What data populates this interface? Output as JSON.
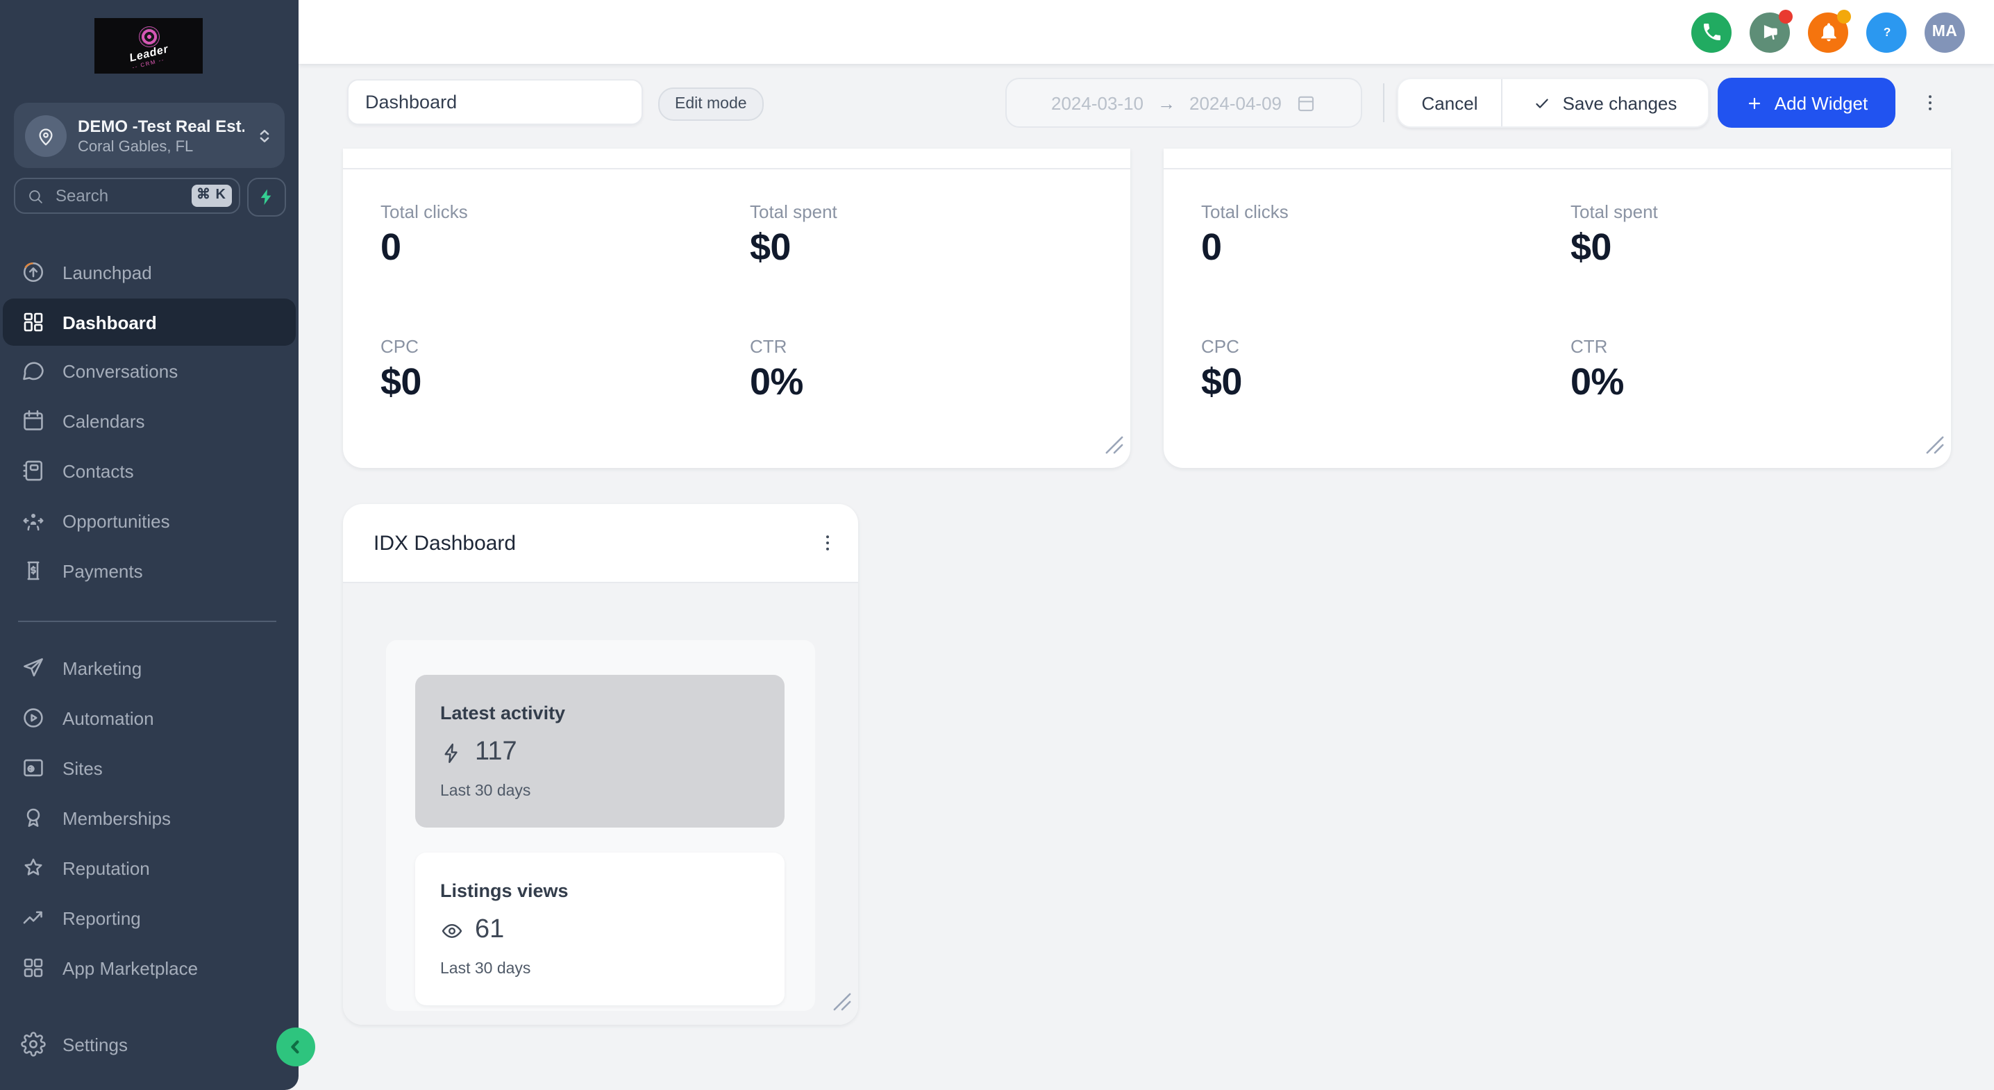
{
  "sidebar": {
    "logo_text": "Leader",
    "logo_subtext": "-- CRM --",
    "account": {
      "name": "DEMO -Test Real Est...",
      "location": "Coral Gables, FL"
    },
    "search_placeholder": "Search",
    "search_shortcut": "⌘ K",
    "nav_groups": [
      {
        "items": [
          {
            "id": "launchpad",
            "label": "Launchpad",
            "icon": "launchpad"
          },
          {
            "id": "dashboard",
            "label": "Dashboard",
            "icon": "dashboard-grid",
            "active": true
          },
          {
            "id": "conversations",
            "label": "Conversations",
            "icon": "chat-bubble"
          },
          {
            "id": "calendars",
            "label": "Calendars",
            "icon": "calendar"
          },
          {
            "id": "contacts",
            "label": "Contacts",
            "icon": "address-book"
          },
          {
            "id": "opportunities",
            "label": "Opportunities",
            "icon": "opportunities"
          },
          {
            "id": "payments",
            "label": "Payments",
            "icon": "invoice"
          }
        ]
      },
      {
        "items": [
          {
            "id": "marketing",
            "label": "Marketing",
            "icon": "paper-plane"
          },
          {
            "id": "automation",
            "label": "Automation",
            "icon": "play-circle"
          },
          {
            "id": "sites",
            "label": "Sites",
            "icon": "browser-globe"
          },
          {
            "id": "memberships",
            "label": "Memberships",
            "icon": "award-badge"
          },
          {
            "id": "reputation",
            "label": "Reputation",
            "icon": "star"
          },
          {
            "id": "reporting",
            "label": "Reporting",
            "icon": "trend-up"
          },
          {
            "id": "app-marketplace",
            "label": "App Marketplace",
            "icon": "grid-squares"
          }
        ]
      }
    ],
    "settings": {
      "id": "settings",
      "label": "Settings",
      "icon": "gear"
    }
  },
  "header": {
    "actions": [
      {
        "name": "phone-button",
        "icon": "phone",
        "bg": "#21ab61"
      },
      {
        "name": "announcements-button",
        "icon": "megaphone",
        "bg": "#5e8e77",
        "badge": "#e93a30"
      },
      {
        "name": "notifications-button",
        "icon": "bell",
        "bg": "#f5740e",
        "badge": "#f3a80b"
      },
      {
        "name": "help-button",
        "icon": "question",
        "bg": "#2b98f0"
      },
      {
        "name": "user-avatar",
        "initials": "MA",
        "bg": "#8294b8"
      }
    ]
  },
  "toolbar": {
    "dashboard_name": "Dashboard",
    "edit_mode_label": "Edit mode",
    "date_start": "2024-03-10",
    "date_end": "2024-04-09",
    "cancel_label": "Cancel",
    "save_label": "Save changes",
    "add_widget_label": "Add Widget"
  },
  "widgets": {
    "ad_reports": [
      {
        "stats": [
          {
            "label": "Total clicks",
            "value": "0"
          },
          {
            "label": "Total spent",
            "value": "$0"
          },
          {
            "label": "CPC",
            "value": "$0"
          },
          {
            "label": "CTR",
            "value": "0%"
          }
        ]
      },
      {
        "stats": [
          {
            "label": "Total clicks",
            "value": "0"
          },
          {
            "label": "Total spent",
            "value": "$0"
          },
          {
            "label": "CPC",
            "value": "$0"
          },
          {
            "label": "CTR",
            "value": "0%"
          }
        ]
      }
    ],
    "idx": {
      "title": "IDX Dashboard",
      "metrics": [
        {
          "label": "Latest activity",
          "icon": "bolt-outline",
          "value": "117",
          "period": "Last 30 days",
          "highlighted": true
        },
        {
          "label": "Listings views",
          "icon": "eye",
          "value": "61",
          "period": "Last 30 days",
          "highlighted": false
        }
      ]
    }
  },
  "colors": {
    "accent_blue": "#2153f0",
    "sidebar_bg": "#2f3b4e",
    "sidebar_active_bg": "#1e2837",
    "page_bg": "#f2f3f5",
    "success_green": "#21ab61",
    "alert_orange": "#f5740e",
    "highlight_gray": "#d3d4d7",
    "collapse_green": "#2ec47e"
  }
}
